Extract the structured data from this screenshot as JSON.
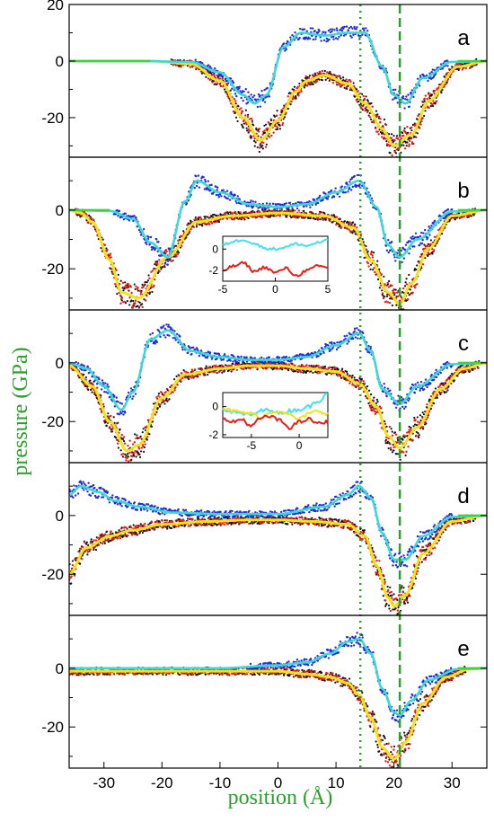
{
  "chart_data": {
    "type": "scatter",
    "xlabel": "position (Å)",
    "ylabel": "pressure (GPa)",
    "xlim": [
      -36,
      36
    ],
    "x_ticks": [
      -30,
      -20,
      -10,
      0,
      10,
      20,
      30
    ],
    "reference_lines": [
      {
        "style": "dotted",
        "color": "#2b9e2b",
        "x": 14.2
      },
      {
        "style": "dashed",
        "color": "#2b9e2b",
        "x": 21
      }
    ],
    "colors": {
      "normal_scatter": "#1f2fd0",
      "normal_fit": "#3fd6d6",
      "lateral_scatter": "#e0201c",
      "lateral_scatter_alt": "#111111",
      "lateral_fit": "#f2e21c",
      "baseline": "#44d044",
      "axis_title": "#2b9e2b"
    },
    "panels": [
      {
        "label": "a",
        "ylim": [
          -34,
          20
        ],
        "y_ticks": [
          20,
          0,
          -20
        ],
        "normal_curve": {
          "x": [
            -36,
            -24,
            -15,
            -10,
            -6,
            -4,
            -2,
            1,
            4,
            8,
            12,
            15,
            18,
            20,
            22,
            25,
            30,
            36
          ],
          "y": [
            0,
            0,
            -0.3,
            -4,
            -12,
            -15,
            -12,
            5,
            10,
            9,
            10,
            10,
            -2,
            -12,
            -15,
            -6,
            -0.3,
            0
          ]
        },
        "lateral_curve": {
          "x": [
            -36,
            -22,
            -15,
            -10,
            -6,
            -3,
            0,
            3,
            5,
            8,
            12,
            15,
            18,
            20,
            23,
            26,
            31,
            36
          ],
          "y": [
            0,
            0,
            -1,
            -7,
            -20,
            -28,
            -21,
            -11,
            -7,
            -5,
            -8,
            -15,
            -24,
            -30,
            -26,
            -14,
            -2,
            0
          ]
        }
      },
      {
        "label": "b",
        "ylim": [
          -34,
          18
        ],
        "y_ticks": [
          0,
          -20
        ],
        "normal_curve": {
          "x": [
            -36,
            -29,
            -25,
            -22,
            -19,
            -16,
            -14,
            -10,
            -5,
            0,
            5,
            10,
            14,
            17,
            19,
            21,
            24,
            30,
            36
          ],
          "y": [
            0,
            -0.3,
            -3,
            -11,
            -16,
            3,
            10,
            6,
            2,
            1,
            2,
            6,
            10,
            1,
            -12,
            -16,
            -10,
            -0.5,
            0
          ]
        },
        "lateral_curve": {
          "x": [
            -36,
            -34,
            -32,
            -29,
            -27,
            -24,
            -19,
            -14,
            -8,
            0,
            8,
            13,
            16,
            19,
            21,
            23,
            26,
            30,
            36
          ],
          "y": [
            0,
            -1,
            -4,
            -17,
            -28,
            -30,
            -16,
            -4,
            -2,
            -1,
            -2,
            -6,
            -17,
            -28,
            -32,
            -25,
            -13,
            -2,
            0
          ]
        },
        "inset": {
          "xlim": [
            -5,
            5
          ],
          "ylim": [
            -3,
            1.2
          ],
          "x_ticks": [
            -5,
            0,
            5
          ],
          "y_ticks": [
            0,
            -2
          ],
          "normal_curve": {
            "x": [
              -5,
              -4,
              -3,
              -2,
              -1,
              0,
              1,
              2,
              3,
              4,
              5
            ],
            "y": [
              0.4,
              0.7,
              0.9,
              0.5,
              0.1,
              0.0,
              0.2,
              0.5,
              0.3,
              0.6,
              0.8
            ]
          },
          "lateral_curve": {
            "x": [
              -5,
              -4,
              -3,
              -2,
              -1,
              0,
              1,
              2,
              3,
              4,
              5
            ],
            "y": [
              -2.0,
              -1.6,
              -1.3,
              -2.1,
              -1.7,
              -2.2,
              -1.8,
              -2.5,
              -2.0,
              -1.6,
              -1.7
            ]
          }
        }
      },
      {
        "label": "c",
        "ylim": [
          -34,
          18
        ],
        "y_ticks": [
          0,
          -20
        ],
        "normal_curve": {
          "x": [
            -36,
            -33,
            -30,
            -27,
            -25,
            -22,
            -19,
            -15,
            -10,
            -5,
            0,
            5,
            10,
            14,
            16,
            18,
            21,
            24,
            30,
            36
          ],
          "y": [
            0,
            -2,
            -8,
            -16,
            -10,
            8,
            11,
            4,
            2,
            1,
            1,
            2,
            6,
            10,
            4,
            -9,
            -14,
            -8,
            -0.5,
            0
          ]
        },
        "lateral_curve": {
          "x": [
            -36,
            -32,
            -29,
            -26,
            -24,
            -20,
            -16,
            -10,
            -5,
            0,
            5,
            10,
            14,
            17,
            19,
            21,
            24,
            28,
            32,
            36
          ],
          "y": [
            -1,
            -8,
            -20,
            -30,
            -28,
            -12,
            -4,
            -2,
            -1,
            -1,
            -2,
            -3,
            -7,
            -15,
            -25,
            -29,
            -22,
            -9,
            -2,
            0
          ]
        },
        "inset": {
          "xlim": [
            -8,
            3
          ],
          "ylim": [
            -2.2,
            1.0
          ],
          "x_ticks": [
            -5,
            0
          ],
          "y_ticks": [
            0,
            -2
          ],
          "normal_curve": {
            "x": [
              -8,
              -7,
              -6,
              -5,
              -4,
              -3,
              -2,
              -1,
              0,
              1,
              2,
              3
            ],
            "y": [
              -0.2,
              -0.4,
              -0.5,
              -0.6,
              -0.3,
              -0.2,
              -0.5,
              -0.3,
              -0.2,
              0.0,
              0.4,
              1.0
            ]
          },
          "lateral_curve": {
            "x": [
              -8,
              -7,
              -6,
              -5,
              -4,
              -3,
              -2,
              -1,
              0,
              1,
              2,
              3
            ],
            "y": [
              -0.9,
              -1.1,
              -0.9,
              -1.4,
              -0.8,
              -0.7,
              -1.0,
              -1.5,
              -1.1,
              -0.9,
              -1.2,
              -1.1
            ]
          },
          "lateral_fit_curve": {
            "x": [
              -8,
              -7,
              -6,
              -5,
              -4,
              -3,
              -2,
              -1,
              0,
              1,
              2,
              3
            ],
            "y": [
              -0.1,
              -0.3,
              -0.4,
              -0.5,
              -0.8,
              -0.4,
              -0.3,
              -0.6,
              -0.9,
              -0.5,
              -0.3,
              -0.5
            ]
          }
        }
      },
      {
        "label": "d",
        "ylim": [
          -34,
          18
        ],
        "y_ticks": [
          0,
          -20
        ],
        "normal_curve": {
          "x": [
            -36,
            -34,
            -31,
            -28,
            -24,
            -18,
            -10,
            0,
            8,
            12,
            14,
            16,
            18,
            20,
            22,
            25,
            30,
            36
          ],
          "y": [
            7,
            10,
            8,
            5,
            3,
            1,
            0.5,
            0.5,
            3,
            7,
            10,
            6,
            -6,
            -15,
            -15,
            -7,
            -0.5,
            0
          ]
        },
        "lateral_curve": {
          "x": [
            -36,
            -33,
            -29,
            -25,
            -20,
            -12,
            -5,
            0,
            6,
            12,
            15,
            17,
            19,
            20,
            22,
            25,
            30,
            36
          ],
          "y": [
            -20,
            -11,
            -7,
            -5,
            -3,
            -2,
            -1.5,
            -1.5,
            -2,
            -3,
            -7,
            -17,
            -28,
            -31,
            -27,
            -13,
            -2,
            0
          ]
        }
      },
      {
        "label": "e",
        "ylim": [
          -34,
          18
        ],
        "y_ticks": [
          0,
          -20
        ],
        "normal_curve": {
          "x": [
            -36,
            -20,
            -10,
            0,
            5,
            9,
            12,
            14,
            16,
            18,
            20,
            21,
            23,
            26,
            31,
            36
          ],
          "y": [
            0,
            0,
            0,
            1,
            2,
            5,
            9,
            10,
            5,
            -7,
            -15,
            -16,
            -11,
            -4,
            -0.3,
            0
          ]
        },
        "lateral_curve": {
          "x": [
            -36,
            -20,
            -10,
            0,
            5,
            9,
            12,
            14,
            16,
            18,
            20,
            22,
            25,
            29,
            33,
            36
          ],
          "y": [
            -1,
            -1,
            -1,
            -1,
            -2,
            -3,
            -5,
            -9,
            -17,
            -27,
            -31,
            -25,
            -12,
            -3,
            -0.3,
            0
          ]
        }
      }
    ]
  }
}
